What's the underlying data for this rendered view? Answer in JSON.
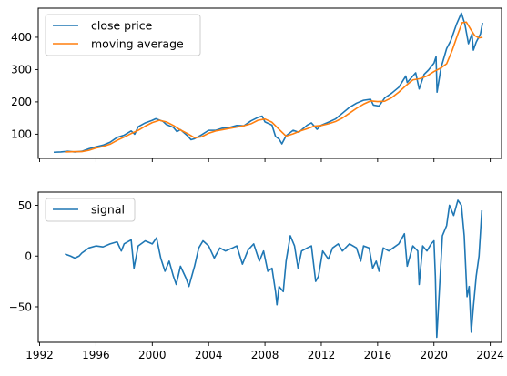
{
  "chart_data": [
    {
      "type": "line",
      "title": "",
      "xlabel": "",
      "ylabel": "",
      "xlim": [
        1991.9,
        2024.8
      ],
      "ylim": [
        25,
        490
      ],
      "xticks": [
        1992,
        1996,
        2000,
        2004,
        2008,
        2012,
        2016,
        2020,
        2024
      ],
      "xtick_labels_visible": false,
      "yticks": [
        100,
        200,
        300,
        400
      ],
      "ytick_labels": [
        "100",
        "200",
        "300",
        "400"
      ],
      "legend_position": "upper-left",
      "grid": false,
      "series": [
        {
          "name": "close price",
          "color": "#1f77b4",
          "points": [
            [
              1993.0,
              44
            ],
            [
              1993.5,
              45
            ],
            [
              1994.0,
              47
            ],
            [
              1994.5,
              45
            ],
            [
              1995.0,
              47
            ],
            [
              1995.5,
              55
            ],
            [
              1996.0,
              61
            ],
            [
              1996.5,
              66
            ],
            [
              1997.0,
              75
            ],
            [
              1997.5,
              90
            ],
            [
              1998.0,
              97
            ],
            [
              1998.5,
              110
            ],
            [
              1998.75,
              100
            ],
            [
              1999.0,
              123
            ],
            [
              1999.5,
              135
            ],
            [
              2000.0,
              143
            ],
            [
              2000.25,
              148
            ],
            [
              2000.75,
              140
            ],
            [
              2001.0,
              130
            ],
            [
              2001.5,
              121
            ],
            [
              2001.75,
              108
            ],
            [
              2002.0,
              114
            ],
            [
              2002.5,
              95
            ],
            [
              2002.75,
              83
            ],
            [
              2003.0,
              86
            ],
            [
              2003.5,
              98
            ],
            [
              2004.0,
              112
            ],
            [
              2004.5,
              112
            ],
            [
              2005.0,
              119
            ],
            [
              2005.5,
              121
            ],
            [
              2006.0,
              127
            ],
            [
              2006.5,
              126
            ],
            [
              2007.0,
              141
            ],
            [
              2007.5,
              152
            ],
            [
              2007.8,
              156
            ],
            [
              2008.0,
              138
            ],
            [
              2008.5,
              128
            ],
            [
              2008.75,
              93
            ],
            [
              2009.0,
              85
            ],
            [
              2009.2,
              70
            ],
            [
              2009.5,
              95
            ],
            [
              2010.0,
              112
            ],
            [
              2010.4,
              106
            ],
            [
              2011.0,
              128
            ],
            [
              2011.3,
              135
            ],
            [
              2011.7,
              115
            ],
            [
              2012.0,
              128
            ],
            [
              2012.5,
              137
            ],
            [
              2013.0,
              147
            ],
            [
              2013.5,
              165
            ],
            [
              2014.0,
              183
            ],
            [
              2014.5,
              196
            ],
            [
              2015.0,
              205
            ],
            [
              2015.5,
              208
            ],
            [
              2015.7,
              190
            ],
            [
              2016.1,
              187
            ],
            [
              2016.5,
              212
            ],
            [
              2017.0,
              227
            ],
            [
              2017.5,
              245
            ],
            [
              2018.0,
              280
            ],
            [
              2018.1,
              260
            ],
            [
              2018.7,
              290
            ],
            [
              2018.95,
              240
            ],
            [
              2019.3,
              285
            ],
            [
              2019.6,
              298
            ],
            [
              2020.0,
              320
            ],
            [
              2020.15,
              340
            ],
            [
              2020.22,
              230
            ],
            [
              2020.5,
              305
            ],
            [
              2020.9,
              365
            ],
            [
              2021.2,
              390
            ],
            [
              2021.6,
              440
            ],
            [
              2021.95,
              475
            ],
            [
              2022.2,
              440
            ],
            [
              2022.45,
              380
            ],
            [
              2022.7,
              410
            ],
            [
              2022.8,
              360
            ],
            [
              2023.0,
              385
            ],
            [
              2023.3,
              410
            ],
            [
              2023.45,
              445
            ]
          ]
        },
        {
          "name": "moving average",
          "color": "#ff7f0e",
          "points": [
            [
              1993.8,
              45
            ],
            [
              1994.5,
              46
            ],
            [
              1995.0,
              46
            ],
            [
              1995.5,
              50
            ],
            [
              1996.0,
              57
            ],
            [
              1996.5,
              62
            ],
            [
              1997.0,
              69
            ],
            [
              1997.5,
              81
            ],
            [
              1998.0,
              91
            ],
            [
              1998.5,
              102
            ],
            [
              1999.0,
              112
            ],
            [
              1999.5,
              125
            ],
            [
              2000.0,
              136
            ],
            [
              2000.5,
              143
            ],
            [
              2001.0,
              138
            ],
            [
              2001.5,
              127
            ],
            [
              2002.0,
              113
            ],
            [
              2002.5,
              102
            ],
            [
              2003.0,
              89
            ],
            [
              2003.5,
              92
            ],
            [
              2004.0,
              103
            ],
            [
              2004.5,
              110
            ],
            [
              2005.0,
              114
            ],
            [
              2005.5,
              118
            ],
            [
              2006.0,
              122
            ],
            [
              2006.5,
              126
            ],
            [
              2007.0,
              132
            ],
            [
              2007.5,
              143
            ],
            [
              2008.0,
              147
            ],
            [
              2008.5,
              137
            ],
            [
              2009.0,
              115
            ],
            [
              2009.5,
              94
            ],
            [
              2010.0,
              101
            ],
            [
              2010.5,
              110
            ],
            [
              2011.0,
              117
            ],
            [
              2011.5,
              125
            ],
            [
              2012.0,
              127
            ],
            [
              2012.5,
              132
            ],
            [
              2013.0,
              139
            ],
            [
              2013.5,
              150
            ],
            [
              2014.0,
              165
            ],
            [
              2014.5,
              180
            ],
            [
              2015.0,
              193
            ],
            [
              2015.5,
              203
            ],
            [
              2016.0,
              201
            ],
            [
              2016.5,
              202
            ],
            [
              2017.0,
              213
            ],
            [
              2017.5,
              230
            ],
            [
              2018.0,
              250
            ],
            [
              2018.5,
              268
            ],
            [
              2019.0,
              272
            ],
            [
              2019.5,
              280
            ],
            [
              2020.0,
              294
            ],
            [
              2020.5,
              305
            ],
            [
              2020.9,
              318
            ],
            [
              2021.3,
              360
            ],
            [
              2021.7,
              410
            ],
            [
              2022.0,
              445
            ],
            [
              2022.3,
              447
            ],
            [
              2022.6,
              425
            ],
            [
              2022.9,
              405
            ],
            [
              2023.2,
              398
            ],
            [
              2023.45,
              400
            ]
          ]
        }
      ]
    },
    {
      "type": "line",
      "title": "",
      "xlabel": "",
      "ylabel": "",
      "xlim": [
        1991.9,
        2024.8
      ],
      "ylim": [
        -85,
        63
      ],
      "xticks": [
        1992,
        1996,
        2000,
        2004,
        2008,
        2012,
        2016,
        2020,
        2024
      ],
      "xtick_labels": [
        "1992",
        "1996",
        "2000",
        "2004",
        "2008",
        "2012",
        "2016",
        "2020",
        "2024"
      ],
      "yticks": [
        -50,
        0,
        50
      ],
      "ytick_labels": [
        "−50",
        "0",
        "50"
      ],
      "legend_position": "upper-left",
      "grid": false,
      "series": [
        {
          "name": "signal",
          "color": "#1f77b4",
          "points": [
            [
              1993.8,
              2
            ],
            [
              1994.2,
              0
            ],
            [
              1994.5,
              -2
            ],
            [
              1994.8,
              0
            ],
            [
              1995.0,
              3
            ],
            [
              1995.5,
              8
            ],
            [
              1996.0,
              10
            ],
            [
              1996.5,
              9
            ],
            [
              1997.0,
              12
            ],
            [
              1997.5,
              14
            ],
            [
              1997.8,
              5
            ],
            [
              1998.0,
              12
            ],
            [
              1998.5,
              16
            ],
            [
              1998.7,
              -12
            ],
            [
              1999.0,
              10
            ],
            [
              1999.5,
              15
            ],
            [
              2000.0,
              12
            ],
            [
              2000.3,
              18
            ],
            [
              2000.6,
              -2
            ],
            [
              2000.9,
              -15
            ],
            [
              2001.2,
              -5
            ],
            [
              2001.5,
              -20
            ],
            [
              2001.7,
              -28
            ],
            [
              2002.0,
              -10
            ],
            [
              2002.4,
              -22
            ],
            [
              2002.6,
              -30
            ],
            [
              2003.0,
              -10
            ],
            [
              2003.3,
              8
            ],
            [
              2003.6,
              15
            ],
            [
              2004.0,
              10
            ],
            [
              2004.4,
              -2
            ],
            [
              2004.8,
              8
            ],
            [
              2005.2,
              5
            ],
            [
              2005.7,
              8
            ],
            [
              2006.0,
              10
            ],
            [
              2006.4,
              -8
            ],
            [
              2006.8,
              6
            ],
            [
              2007.2,
              12
            ],
            [
              2007.6,
              -5
            ],
            [
              2007.9,
              5
            ],
            [
              2008.2,
              -15
            ],
            [
              2008.5,
              -12
            ],
            [
              2008.75,
              -35
            ],
            [
              2008.85,
              -48
            ],
            [
              2009.0,
              -30
            ],
            [
              2009.3,
              -35
            ],
            [
              2009.5,
              -5
            ],
            [
              2009.8,
              20
            ],
            [
              2010.1,
              10
            ],
            [
              2010.35,
              -12
            ],
            [
              2010.6,
              5
            ],
            [
              2011.0,
              8
            ],
            [
              2011.3,
              10
            ],
            [
              2011.6,
              -25
            ],
            [
              2011.8,
              -20
            ],
            [
              2012.1,
              5
            ],
            [
              2012.5,
              -3
            ],
            [
              2012.8,
              8
            ],
            [
              2013.2,
              12
            ],
            [
              2013.5,
              5
            ],
            [
              2014.0,
              12
            ],
            [
              2014.5,
              8
            ],
            [
              2014.8,
              -5
            ],
            [
              2015.0,
              10
            ],
            [
              2015.4,
              8
            ],
            [
              2015.65,
              -12
            ],
            [
              2015.9,
              -5
            ],
            [
              2016.1,
              -15
            ],
            [
              2016.4,
              8
            ],
            [
              2016.8,
              5
            ],
            [
              2017.1,
              8
            ],
            [
              2017.5,
              12
            ],
            [
              2017.9,
              22
            ],
            [
              2018.1,
              -10
            ],
            [
              2018.5,
              10
            ],
            [
              2018.85,
              5
            ],
            [
              2018.95,
              -28
            ],
            [
              2019.2,
              10
            ],
            [
              2019.5,
              5
            ],
            [
              2019.8,
              12
            ],
            [
              2020.0,
              15
            ],
            [
              2020.1,
              -20
            ],
            [
              2020.2,
              -80
            ],
            [
              2020.4,
              -30
            ],
            [
              2020.6,
              20
            ],
            [
              2020.9,
              30
            ],
            [
              2021.1,
              50
            ],
            [
              2021.4,
              40
            ],
            [
              2021.7,
              55
            ],
            [
              2021.95,
              50
            ],
            [
              2022.15,
              20
            ],
            [
              2022.35,
              -40
            ],
            [
              2022.5,
              -30
            ],
            [
              2022.65,
              -75
            ],
            [
              2022.8,
              -50
            ],
            [
              2023.0,
              -20
            ],
            [
              2023.2,
              0
            ],
            [
              2023.4,
              45
            ]
          ]
        }
      ]
    }
  ]
}
